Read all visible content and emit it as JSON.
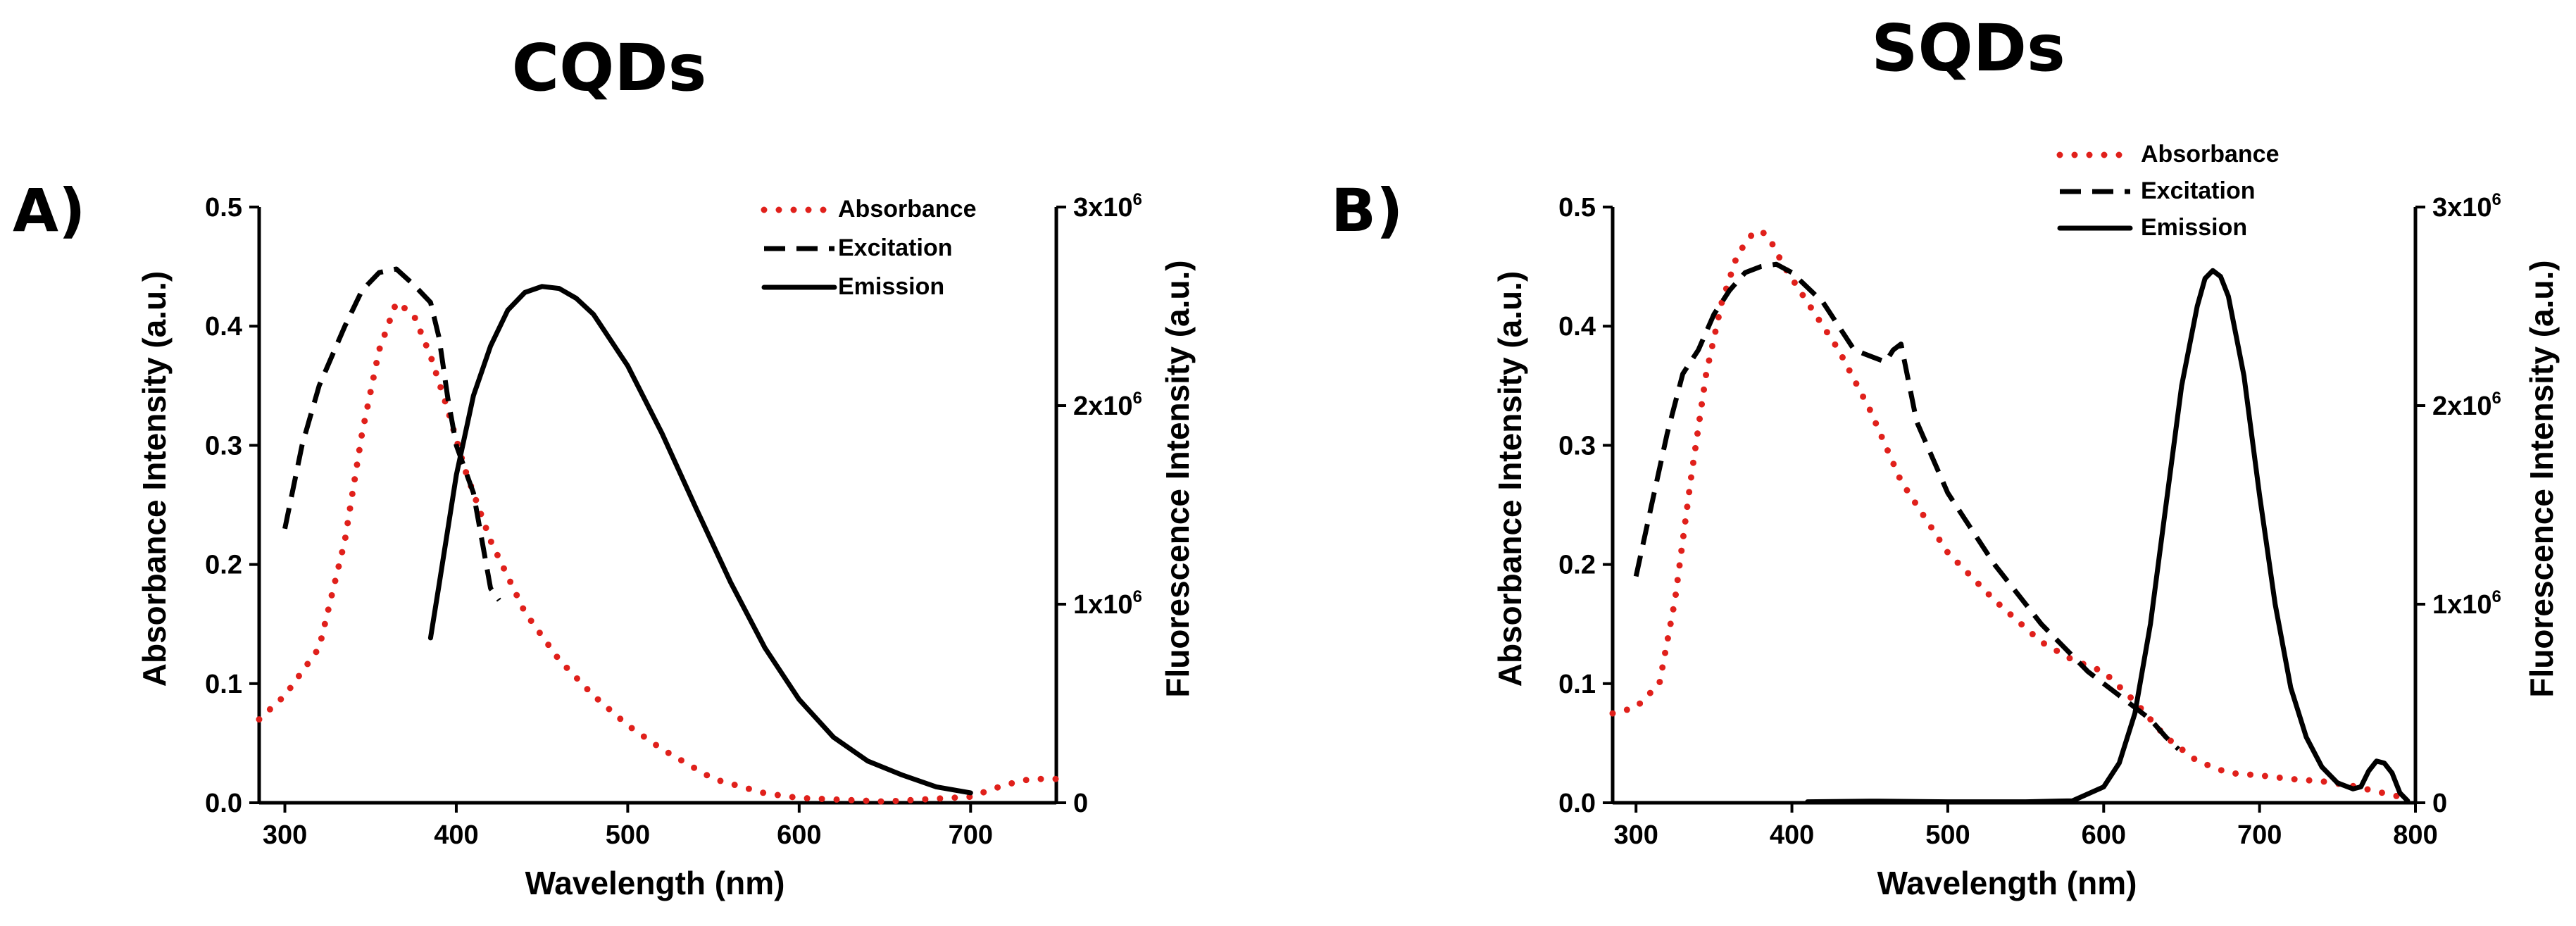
{
  "chart_data": [
    {
      "type": "line",
      "panel_label": "A)",
      "title": "CQDs",
      "xlabel": "Wavelength (nm)",
      "ylabel": "Absorbance Intensity (a.u.)",
      "y2label": "Fluorescence Intensity (a.u.)",
      "xlim": [
        285,
        750
      ],
      "ylim": [
        0,
        0.5
      ],
      "y2lim": [
        0,
        3000000
      ],
      "x_ticks": [
        300,
        400,
        500,
        600,
        700
      ],
      "y_ticks": [
        0.0,
        0.1,
        0.2,
        0.3,
        0.4,
        0.5
      ],
      "y_tick_labels": [
        "0.0",
        "0.1",
        "0.2",
        "0.3",
        "0.4",
        "0.5"
      ],
      "y2_ticks": [
        0,
        1000000,
        2000000,
        3000000
      ],
      "y2_tick_labels": [
        {
          "base": "0",
          "exp": ""
        },
        {
          "base": "1x10",
          "exp": "6"
        },
        {
          "base": "2x10",
          "exp": "6"
        },
        {
          "base": "3x10",
          "exp": "6"
        }
      ],
      "legend": [
        "Absorbance",
        "Excitation",
        "Emission"
      ],
      "legend_position": "top-right",
      "series": [
        {
          "name": "Absorbance",
          "axis": "left",
          "style": "dotted",
          "color": "#e0201b",
          "x": [
            285,
            300,
            320,
            335,
            345,
            355,
            365,
            375,
            385,
            395,
            405,
            420,
            440,
            460,
            480,
            500,
            520,
            550,
            580,
            600,
            650,
            700,
            720,
            735,
            750
          ],
          "y": [
            0.07,
            0.09,
            0.13,
            0.22,
            0.31,
            0.38,
            0.42,
            0.41,
            0.375,
            0.33,
            0.28,
            0.22,
            0.16,
            0.12,
            0.09,
            0.065,
            0.045,
            0.02,
            0.008,
            0.004,
            0.001,
            0.005,
            0.015,
            0.02,
            0.02
          ]
        },
        {
          "name": "Excitation",
          "axis": "left",
          "style": "dashed",
          "color": "#000000",
          "x": [
            300,
            310,
            320,
            335,
            345,
            355,
            365,
            375,
            385,
            390,
            395,
            400,
            410,
            420,
            425
          ],
          "y": [
            0.23,
            0.3,
            0.35,
            0.4,
            0.43,
            0.445,
            0.448,
            0.435,
            0.42,
            0.39,
            0.34,
            0.3,
            0.26,
            0.18,
            0.17
          ]
        },
        {
          "name": "Emission",
          "axis": "right",
          "style": "solid",
          "color": "#000000",
          "x": [
            385,
            390,
            400,
            410,
            420,
            430,
            440,
            450,
            460,
            470,
            480,
            500,
            520,
            540,
            560,
            580,
            600,
            620,
            640,
            660,
            680,
            700
          ],
          "y": [
            830000,
            1100000,
            1650000,
            2050000,
            2300000,
            2480000,
            2570000,
            2600000,
            2590000,
            2540000,
            2460000,
            2200000,
            1860000,
            1480000,
            1110000,
            780000,
            520000,
            330000,
            210000,
            140000,
            80000,
            50000
          ]
        }
      ]
    },
    {
      "type": "line",
      "panel_label": "B)",
      "title": "SQDs",
      "xlabel": "Wavelength (nm)",
      "ylabel": "Absorbance Intensity (a.u.)",
      "y2label": "Fluorescence Intensity (a.u.)",
      "xlim": [
        285,
        800
      ],
      "ylim": [
        0,
        0.5
      ],
      "y2lim": [
        0,
        3000000
      ],
      "x_ticks": [
        300,
        400,
        500,
        600,
        700,
        800
      ],
      "y_ticks": [
        0.0,
        0.1,
        0.2,
        0.3,
        0.4,
        0.5
      ],
      "y_tick_labels": [
        "0.0",
        "0.1",
        "0.2",
        "0.3",
        "0.4",
        "0.5"
      ],
      "y2_ticks": [
        0,
        1000000,
        2000000,
        3000000
      ],
      "y2_tick_labels": [
        {
          "base": "0",
          "exp": ""
        },
        {
          "base": "1x10",
          "exp": "6"
        },
        {
          "base": "2x10",
          "exp": "6"
        },
        {
          "base": "3x10",
          "exp": "6"
        }
      ],
      "legend": [
        "Absorbance",
        "Excitation",
        "Emission"
      ],
      "legend_position": "top-right",
      "series": [
        {
          "name": "Absorbance",
          "axis": "left",
          "style": "dotted",
          "color": "#e0201b",
          "x": [
            285,
            300,
            315,
            325,
            335,
            345,
            355,
            365,
            375,
            380,
            385,
            395,
            410,
            430,
            450,
            470,
            500,
            530,
            560,
            580,
            600,
            620,
            640,
            660,
            680,
            700,
            720,
            740,
            760,
            780,
            790
          ],
          "y": [
            0.075,
            0.08,
            0.1,
            0.17,
            0.27,
            0.36,
            0.42,
            0.46,
            0.478,
            0.48,
            0.475,
            0.45,
            0.42,
            0.38,
            0.33,
            0.27,
            0.21,
            0.17,
            0.135,
            0.12,
            0.11,
            0.085,
            0.055,
            0.035,
            0.025,
            0.023,
            0.02,
            0.018,
            0.014,
            0.008,
            0.005
          ]
        },
        {
          "name": "Excitation",
          "axis": "left",
          "style": "dashed",
          "color": "#000000",
          "x": [
            300,
            310,
            320,
            330,
            340,
            350,
            360,
            370,
            380,
            390,
            400,
            420,
            440,
            450,
            460,
            465,
            470,
            480,
            500,
            530,
            560,
            590,
            620,
            630,
            640,
            648
          ],
          "y": [
            0.19,
            0.25,
            0.31,
            0.36,
            0.38,
            0.41,
            0.43,
            0.445,
            0.45,
            0.452,
            0.445,
            0.42,
            0.38,
            0.375,
            0.37,
            0.38,
            0.385,
            0.32,
            0.26,
            0.2,
            0.15,
            0.11,
            0.08,
            0.07,
            0.055,
            0.045
          ]
        },
        {
          "name": "Emission",
          "axis": "right",
          "style": "solid",
          "color": "#000000",
          "x": [
            410,
            450,
            500,
            550,
            580,
            600,
            610,
            620,
            630,
            640,
            650,
            660,
            665,
            670,
            675,
            680,
            690,
            700,
            710,
            720,
            730,
            740,
            750,
            760,
            765,
            770,
            775,
            780,
            785,
            790,
            795
          ],
          "y": [
            5000,
            8000,
            5000,
            5000,
            10000,
            80000,
            200000,
            450000,
            900000,
            1500000,
            2100000,
            2500000,
            2640000,
            2680000,
            2650000,
            2550000,
            2150000,
            1550000,
            1000000,
            580000,
            330000,
            180000,
            100000,
            70000,
            80000,
            160000,
            210000,
            200000,
            150000,
            50000,
            10000
          ]
        }
      ]
    }
  ]
}
